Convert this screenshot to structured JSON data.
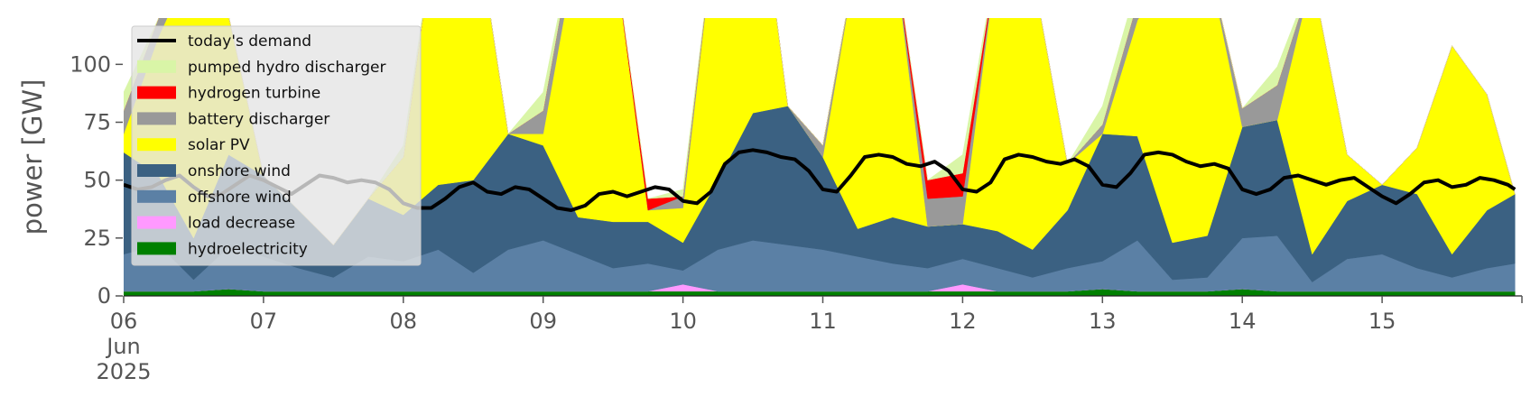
{
  "chart_data": {
    "type": "area",
    "xlabel": "",
    "ylabel": "power [GW]",
    "ylim": [
      0,
      120
    ],
    "yticks": [
      0,
      25,
      50,
      75,
      100
    ],
    "x_tick_labels": [
      "06\nJun\n2025",
      "07",
      "08",
      "09",
      "10",
      "11",
      "12",
      "13",
      "14",
      "15"
    ],
    "xlim_days": [
      "2025-06-06",
      "2025-06-16"
    ],
    "grid": false,
    "legend_position": "upper-left",
    "x": [
      6.0,
      6.25,
      6.5,
      6.75,
      7.0,
      7.25,
      7.5,
      7.75,
      8.0,
      8.25,
      8.5,
      8.75,
      9.0,
      9.25,
      9.5,
      9.75,
      10.0,
      10.25,
      10.5,
      10.75,
      11.0,
      11.25,
      11.5,
      11.75,
      12.0,
      12.25,
      12.5,
      12.75,
      13.0,
      13.25,
      13.5,
      13.75,
      14.0,
      14.25,
      14.5,
      14.75,
      15.0,
      15.25,
      15.5,
      15.75,
      15.95
    ],
    "series": [
      {
        "name": "hydroelectricity",
        "color": "#008000",
        "values": [
          2,
          2,
          2,
          3,
          2,
          2,
          2,
          2,
          2,
          2,
          2,
          2,
          2,
          2,
          2,
          2,
          2,
          2,
          2,
          2,
          2,
          2,
          2,
          2,
          2,
          2,
          2,
          2,
          3,
          2,
          2,
          2,
          3,
          2,
          2,
          2,
          2,
          2,
          2,
          2,
          2
        ]
      },
      {
        "name": "load decrease",
        "color": "#ff99ff",
        "values": [
          0,
          0,
          0,
          0,
          0,
          0,
          0,
          0,
          0,
          0,
          0,
          0,
          0,
          0,
          0,
          0,
          3,
          0,
          0,
          0,
          0,
          0,
          0,
          0,
          3,
          0,
          0,
          0,
          0,
          0,
          0,
          0,
          0,
          0,
          0,
          0,
          0,
          0,
          0,
          0,
          0
        ]
      },
      {
        "name": "offshore wind",
        "color": "#5b80a5",
        "values": [
          16,
          20,
          5,
          18,
          15,
          10,
          6,
          15,
          13,
          18,
          8,
          18,
          22,
          16,
          10,
          12,
          6,
          18,
          22,
          20,
          18,
          15,
          12,
          10,
          11,
          10,
          6,
          10,
          12,
          22,
          5,
          6,
          22,
          24,
          4,
          14,
          16,
          10,
          6,
          10,
          12
        ]
      },
      {
        "name": "onshore wind",
        "color": "#3b6182",
        "values": [
          44,
          30,
          18,
          40,
          35,
          25,
          14,
          25,
          20,
          28,
          40,
          50,
          41,
          16,
          20,
          18,
          12,
          30,
          55,
          60,
          40,
          12,
          20,
          18,
          15,
          16,
          12,
          25,
          55,
          45,
          16,
          18,
          48,
          50,
          12,
          25,
          30,
          32,
          10,
          25,
          30
        ]
      },
      {
        "name": "solar PV",
        "color": "#ffff00",
        "values": [
          8,
          60,
          120,
          60,
          0,
          0,
          0,
          0,
          25,
          120,
          120,
          0,
          5,
          120,
          120,
          5,
          15,
          120,
          120,
          0,
          0,
          120,
          120,
          0,
          0,
          120,
          120,
          20,
          0,
          50,
          120,
          120,
          0,
          0,
          120,
          20,
          0,
          20,
          90,
          50,
          0
        ]
      },
      {
        "name": "battery discharger",
        "color": "#999999",
        "values": [
          10,
          8,
          0,
          0,
          0,
          0,
          0,
          0,
          0,
          0,
          0,
          0,
          10,
          10,
          0,
          0,
          5,
          0,
          0,
          0,
          5,
          0,
          0,
          12,
          12,
          0,
          0,
          0,
          4,
          8,
          0,
          0,
          8,
          15,
          0,
          0,
          0,
          0,
          0,
          0,
          0
        ]
      },
      {
        "name": "hydrogen turbine",
        "color": "#ff0000",
        "values": [
          0,
          0,
          0,
          0,
          0,
          0,
          0,
          0,
          0,
          0,
          0,
          0,
          0,
          0,
          0,
          5,
          0,
          0,
          0,
          0,
          0,
          0,
          0,
          8,
          10,
          0,
          0,
          0,
          0,
          0,
          0,
          0,
          0,
          0,
          0,
          0,
          0,
          0,
          0,
          0,
          0
        ]
      },
      {
        "name": "pumped hydro discharger",
        "color": "#d9f5a7",
        "values": [
          8,
          0,
          0,
          0,
          0,
          0,
          0,
          0,
          5,
          0,
          0,
          0,
          8,
          0,
          0,
          0,
          3,
          0,
          0,
          0,
          0,
          0,
          0,
          0,
          8,
          0,
          0,
          0,
          8,
          8,
          0,
          0,
          0,
          8,
          0,
          0,
          0,
          0,
          0,
          0,
          0
        ]
      }
    ],
    "demand": {
      "name": "today's demand",
      "color": "#000000",
      "x": [
        6.0,
        6.1,
        6.2,
        6.3,
        6.4,
        6.5,
        6.6,
        6.7,
        6.8,
        6.9,
        7.0,
        7.1,
        7.2,
        7.3,
        7.4,
        7.5,
        7.6,
        7.7,
        7.8,
        7.9,
        8.0,
        8.1,
        8.2,
        8.3,
        8.4,
        8.5,
        8.6,
        8.7,
        8.8,
        8.9,
        9.0,
        9.1,
        9.2,
        9.3,
        9.4,
        9.5,
        9.6,
        9.7,
        9.8,
        9.9,
        10.0,
        10.1,
        10.2,
        10.3,
        10.4,
        10.5,
        10.6,
        10.7,
        10.8,
        10.9,
        11.0,
        11.1,
        11.2,
        11.3,
        11.4,
        11.5,
        11.6,
        11.7,
        11.8,
        11.9,
        12.0,
        12.1,
        12.2,
        12.3,
        12.4,
        12.5,
        12.6,
        12.7,
        12.8,
        12.9,
        13.0,
        13.1,
        13.2,
        13.3,
        13.4,
        13.5,
        13.6,
        13.7,
        13.8,
        13.9,
        14.0,
        14.1,
        14.2,
        14.3,
        14.4,
        14.5,
        14.6,
        14.7,
        14.8,
        14.9,
        15.0,
        15.1,
        15.2,
        15.3,
        15.4,
        15.5,
        15.6,
        15.7,
        15.8,
        15.9,
        15.95
      ],
      "values": [
        48,
        46,
        47,
        50,
        52,
        47,
        43,
        44,
        48,
        52,
        50,
        47,
        44,
        48,
        52,
        51,
        49,
        50,
        49,
        46,
        40,
        38,
        38,
        42,
        47,
        49,
        45,
        44,
        47,
        46,
        42,
        38,
        37,
        39,
        44,
        45,
        43,
        45,
        47,
        46,
        41,
        40,
        45,
        57,
        62,
        63,
        62,
        60,
        59,
        54,
        46,
        45,
        52,
        60,
        61,
        60,
        57,
        56,
        58,
        54,
        46,
        45,
        49,
        59,
        61,
        60,
        58,
        57,
        59,
        56,
        48,
        47,
        53,
        61,
        62,
        61,
        58,
        56,
        57,
        55,
        46,
        44,
        46,
        51,
        52,
        50,
        48,
        50,
        51,
        47,
        43,
        40,
        44,
        49,
        50,
        47,
        48,
        51,
        50,
        48,
        46
      ]
    }
  }
}
